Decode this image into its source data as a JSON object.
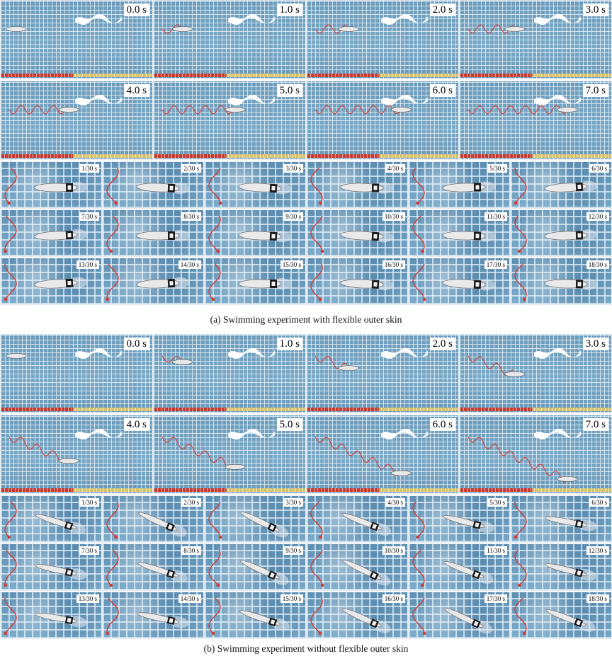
{
  "panel_a": {
    "caption": "(a) Swimming experiment with flexible outer skin",
    "big_frames": [
      "0.0 s",
      "1.0 s",
      "2.0 s",
      "3.0 s",
      "4.0 s",
      "5.0 s",
      "6.0 s",
      "7.0 s"
    ],
    "small_frames": [
      "1/30 s",
      "2/30 s",
      "3/30 s",
      "4/30 s",
      "5/30 s",
      "6/30 s",
      "7/30 s",
      "8/30 s",
      "9/30 s",
      "10/30 s",
      "11/30 s",
      "12/30 s",
      "13/30 s",
      "14/30 s",
      "15/30 s",
      "16/30 s",
      "17/30 s",
      "18/30 s"
    ]
  },
  "panel_b": {
    "caption": "(b) Swimming experiment without flexible outer skin",
    "big_frames": [
      "0.0 s",
      "1.0 s",
      "2.0 s",
      "3.0 s",
      "4.0 s",
      "5.0 s",
      "6.0 s",
      "7.0 s"
    ],
    "small_frames": [
      "1/30 s",
      "2/30 s",
      "3/30 s",
      "4/30 s",
      "5/30 s",
      "6/30 s",
      "7/30 s",
      "8/30 s",
      "9/30 s",
      "10/30 s",
      "11/30 s",
      "12/30 s",
      "13/30 s",
      "14/30 s",
      "15/30 s",
      "16/30 s",
      "17/30 s",
      "18/30 s"
    ]
  },
  "colors": {
    "trajectory": "#d9342b",
    "ruler_red": "#c8382c",
    "ruler_yellow": "#d8c36a",
    "pool": "#6e9fbe"
  }
}
